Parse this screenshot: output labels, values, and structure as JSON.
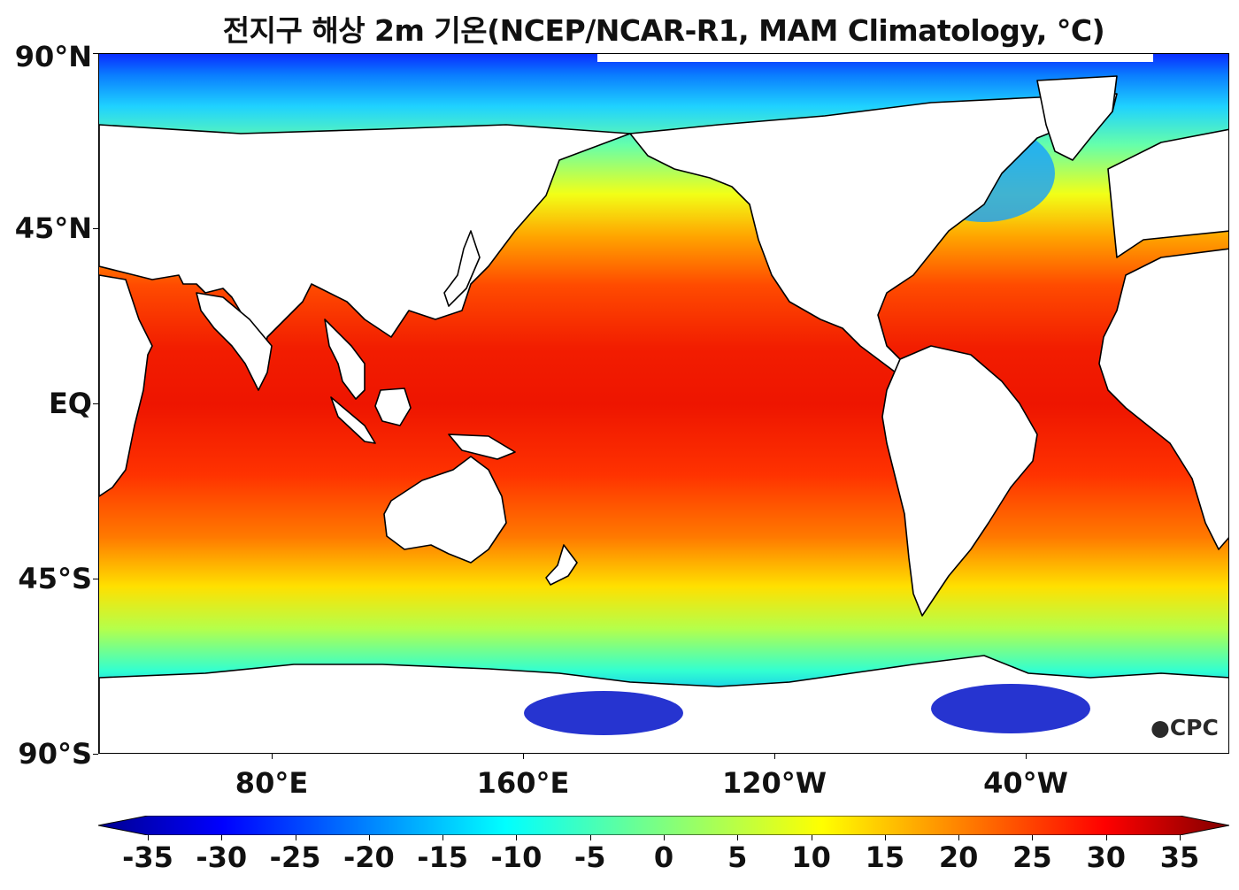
{
  "title": "전지구 해상 2m 기온(NCEP/NCAR-R1, MAM Climatology, °C)",
  "map": {
    "projection": "equirectangular",
    "center_longitude": "Pacific-centered",
    "lat_labels": [
      "90°N",
      "45°N",
      "EQ",
      "45°S",
      "90°S"
    ],
    "lon_labels": [
      "80°E",
      "160°E",
      "120°W",
      "40°W"
    ],
    "land_color": "#ffffff",
    "coastline_color": "#000000"
  },
  "colorbar": {
    "colormap": "jet",
    "ticks": [
      "-35",
      "-30",
      "-25",
      "-20",
      "-15",
      "-10",
      "-5",
      "0",
      "5",
      "10",
      "15",
      "20",
      "25",
      "30",
      "35"
    ],
    "extend": "both",
    "units": "°C"
  },
  "credit": "CPC",
  "colors": {
    "deep_cold": "#00007f",
    "cold": "#0000ff",
    "cool": "#00ffff",
    "mild": "#7fff7f",
    "warm": "#ffff00",
    "hot": "#ff7f00",
    "very_hot": "#ff0000",
    "extreme": "#7f0000"
  }
}
